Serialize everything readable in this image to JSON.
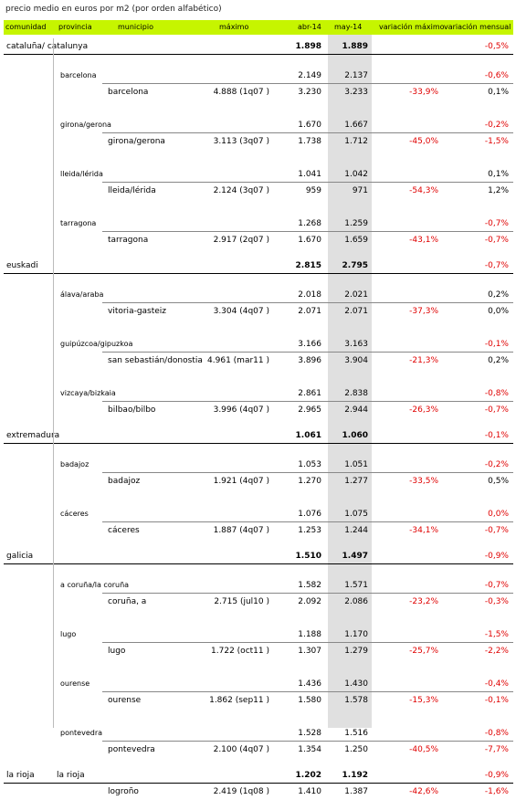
{
  "title": "precio medio en euros por m2 (por orden alfabético)",
  "headers": {
    "comunidad": "comunidad",
    "provincia": "provincia",
    "municipio": "municipio",
    "maximo": "máximo",
    "abr": "abr-14",
    "may": "may-14",
    "var_max": "variación máximo",
    "var_mensual": "variación mensual"
  },
  "rows": [
    {
      "type": "comunidad",
      "name": "cataluña/ catalunya",
      "abr": "1.898",
      "may": "1.889",
      "vmen": "-0,5%",
      "vmen_neg": true
    },
    {
      "type": "provincia",
      "name": "barcelona",
      "abr": "2.149",
      "may": "2.137",
      "vmen": "-0,6%",
      "vmen_neg": true
    },
    {
      "type": "municipio",
      "name": "barcelona",
      "max": "4.888 (1q07 )",
      "abr": "3.230",
      "may": "3.233",
      "vmax": "-33,9%",
      "vmen": "0,1%",
      "vmen_neg": false
    },
    {
      "type": "provincia",
      "name": "girona/gerona",
      "abr": "1.670",
      "may": "1.667",
      "vmen": "-0,2%",
      "vmen_neg": true
    },
    {
      "type": "municipio",
      "name": "girona/gerona",
      "max": "3.113 (3q07 )",
      "abr": "1.738",
      "may": "1.712",
      "vmax": "-45,0%",
      "vmen": "-1,5%",
      "vmen_neg": true
    },
    {
      "type": "provincia",
      "name": "lleida/lérida",
      "abr": "1.041",
      "may": "1.042",
      "vmen": "0,1%",
      "vmen_neg": false
    },
    {
      "type": "municipio",
      "name": "lleida/lérida",
      "max": "2.124 (3q07 )",
      "abr": "959",
      "may": "971",
      "vmax": "-54,3%",
      "vmen": "1,2%",
      "vmen_neg": false
    },
    {
      "type": "provincia",
      "name": "tarragona",
      "abr": "1.268",
      "may": "1.259",
      "vmen": "-0,7%",
      "vmen_neg": true
    },
    {
      "type": "municipio",
      "name": "tarragona",
      "max": "2.917 (2q07 )",
      "abr": "1.670",
      "may": "1.659",
      "vmax": "-43,1%",
      "vmen": "-0,7%",
      "vmen_neg": true
    },
    {
      "type": "comunidad",
      "name": "euskadi",
      "abr": "2.815",
      "may": "2.795",
      "vmen": "-0,7%",
      "vmen_neg": true
    },
    {
      "type": "provincia",
      "name": "álava/araba",
      "abr": "2.018",
      "may": "2.021",
      "vmen": "0,2%",
      "vmen_neg": false
    },
    {
      "type": "municipio",
      "name": "vitoria-gasteiz",
      "max": "3.304 (4q07 )",
      "abr": "2.071",
      "may": "2.071",
      "vmax": "-37,3%",
      "vmen": "0,0%",
      "vmen_neg": false
    },
    {
      "type": "provincia",
      "name": "guipúzcoa/gipuzkoa",
      "abr": "3.166",
      "may": "3.163",
      "vmen": "-0,1%",
      "vmen_neg": true
    },
    {
      "type": "municipio",
      "name": "san sebastián/donostia",
      "max": "4.961 (mar11 )",
      "abr": "3.896",
      "may": "3.904",
      "vmax": "-21,3%",
      "vmen": "0,2%",
      "vmen_neg": false
    },
    {
      "type": "provincia",
      "name": "vizcaya/bizkaia",
      "abr": "2.861",
      "may": "2.838",
      "vmen": "-0,8%",
      "vmen_neg": true
    },
    {
      "type": "municipio",
      "name": "bilbao/bilbo",
      "max": "3.996 (4q07 )",
      "abr": "2.965",
      "may": "2.944",
      "vmax": "-26,3%",
      "vmen": "-0,7%",
      "vmen_neg": true
    },
    {
      "type": "comunidad",
      "name": "extremadura",
      "abr": "1.061",
      "may": "1.060",
      "vmen": "-0,1%",
      "vmen_neg": true
    },
    {
      "type": "provincia",
      "name": "badajoz",
      "abr": "1.053",
      "may": "1.051",
      "vmen": "-0,2%",
      "vmen_neg": true
    },
    {
      "type": "municipio",
      "name": "badajoz",
      "max": "1.921 (4q07 )",
      "abr": "1.270",
      "may": "1.277",
      "vmax": "-33,5%",
      "vmen": "0,5%",
      "vmen_neg": false
    },
    {
      "type": "provincia",
      "name": "cáceres",
      "abr": "1.076",
      "may": "1.075",
      "vmen": "0,0%",
      "vmen_neg": true
    },
    {
      "type": "municipio",
      "name": "cáceres",
      "max": "1.887 (4q07 )",
      "abr": "1.253",
      "may": "1.244",
      "vmax": "-34,1%",
      "vmen": "-0,7%",
      "vmen_neg": true
    },
    {
      "type": "comunidad",
      "name": "galicia",
      "abr": "1.510",
      "may": "1.497",
      "vmen": "-0,9%",
      "vmen_neg": true
    },
    {
      "type": "provincia",
      "name": "a coruña/la coruña",
      "abr": "1.582",
      "may": "1.571",
      "vmen": "-0,7%",
      "vmen_neg": true
    },
    {
      "type": "municipio",
      "name": "coruña, a",
      "max": "2.715 (jul10 )",
      "abr": "2.092",
      "may": "2.086",
      "vmax": "-23,2%",
      "vmen": "-0,3%",
      "vmen_neg": true
    },
    {
      "type": "provincia",
      "name": "lugo",
      "abr": "1.188",
      "may": "1.170",
      "vmen": "-1,5%",
      "vmen_neg": true
    },
    {
      "type": "municipio",
      "name": "lugo",
      "max": "1.722 (oct11 )",
      "abr": "1.307",
      "may": "1.279",
      "vmax": "-25,7%",
      "vmen": "-2,2%",
      "vmen_neg": true
    },
    {
      "type": "provincia",
      "name": "ourense",
      "abr": "1.436",
      "may": "1.430",
      "vmen": "-0,4%",
      "vmen_neg": true
    },
    {
      "type": "municipio",
      "name": "ourense",
      "max": "1.862 (sep11 )",
      "abr": "1.580",
      "may": "1.578",
      "vmax": "-15,3%",
      "vmen": "-0,1%",
      "vmen_neg": true
    },
    {
      "type": "provincia",
      "name": "pontevedra",
      "abr": "1.528",
      "may": "1.516",
      "vmen": "-0,8%",
      "vmen_neg": true
    },
    {
      "type": "municipio",
      "name": "pontevedra",
      "max": "2.100 (4q07 )",
      "abr": "1.354",
      "may": "1.250",
      "vmax": "-40,5%",
      "vmen": "-7,7%",
      "vmen_neg": true
    },
    {
      "type": "comunidad",
      "name": "la rioja",
      "prov": "la rioja",
      "abr": "1.202",
      "may": "1.192",
      "vmen": "-0,9%",
      "vmen_neg": true
    },
    {
      "type": "municipio",
      "name": "logroño",
      "max": "2.419 (1q08 )",
      "abr": "1.410",
      "may": "1.387",
      "vmax": "-42,6%",
      "vmen": "-1,6%",
      "vmen_neg": true
    }
  ]
}
